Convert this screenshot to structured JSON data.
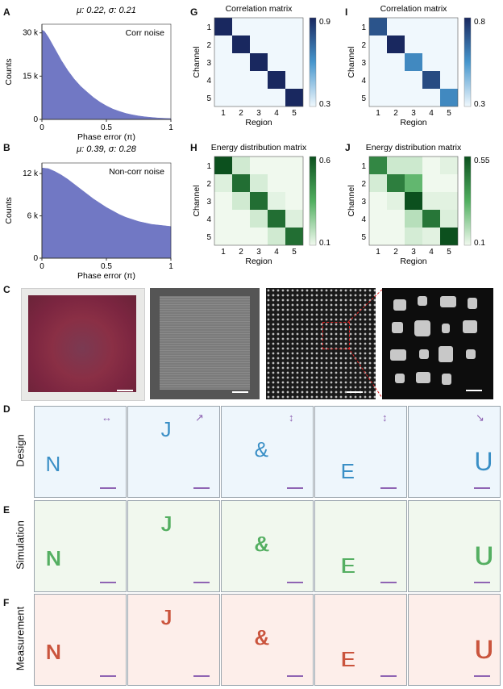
{
  "panels": {
    "A": "A",
    "B": "B",
    "C": "C",
    "D": "D",
    "E": "E",
    "F": "F",
    "G": "G",
    "H": "H",
    "I": "I",
    "J": "J"
  },
  "chart_data": [
    {
      "id": "A",
      "type": "area",
      "title": "μ: 0.22, σ: 0.21",
      "annotation": "Corr noise",
      "xlabel": "Phase error (π)",
      "ylabel": "Counts",
      "xlim": [
        0,
        1
      ],
      "ylim": [
        0,
        33000
      ],
      "xticks": [
        "0",
        "0.5",
        "1"
      ],
      "yticks": [
        {
          "v": 0,
          "label": "0"
        },
        {
          "v": 15000,
          "label": "15 k"
        },
        {
          "v": 30000,
          "label": "30 k"
        }
      ],
      "x": [
        0,
        0.02,
        0.05,
        0.1,
        0.15,
        0.2,
        0.25,
        0.3,
        0.35,
        0.4,
        0.45,
        0.5,
        0.55,
        0.6,
        0.65,
        0.7,
        0.75,
        0.8,
        0.85,
        0.9,
        0.95,
        1.0
      ],
      "values": [
        31000,
        30500,
        28500,
        24500,
        20500,
        17000,
        14000,
        11500,
        9500,
        7600,
        6000,
        4700,
        3600,
        2800,
        2100,
        1600,
        1200,
        900,
        700,
        500,
        400,
        300
      ],
      "color": "#7178c4"
    },
    {
      "id": "B",
      "type": "area",
      "title": "μ: 0.39, σ: 0.28",
      "annotation": "Non-corr noise",
      "xlabel": "Phase error (π)",
      "ylabel": "Counts",
      "xlim": [
        0,
        1
      ],
      "ylim": [
        0,
        13500
      ],
      "xticks": [
        "0",
        "0.5",
        "1"
      ],
      "yticks": [
        {
          "v": 0,
          "label": "0"
        },
        {
          "v": 6000,
          "label": "6 k"
        },
        {
          "v": 12000,
          "label": "12 k"
        }
      ],
      "x": [
        0,
        0.05,
        0.1,
        0.15,
        0.2,
        0.25,
        0.3,
        0.35,
        0.4,
        0.45,
        0.5,
        0.55,
        0.6,
        0.65,
        0.7,
        0.75,
        0.8,
        0.85,
        0.9,
        0.95,
        1.0
      ],
      "values": [
        12800,
        12700,
        12300,
        11800,
        11200,
        10500,
        9800,
        9100,
        8400,
        7800,
        7200,
        6700,
        6200,
        5800,
        5500,
        5200,
        5000,
        4800,
        4700,
        4600,
        4500
      ],
      "color": "#7178c4"
    },
    {
      "id": "G",
      "type": "heatmap",
      "title": "Correlation matrix",
      "xlabel": "Region",
      "ylabel": "Channel",
      "xticks": [
        "1",
        "2",
        "3",
        "4",
        "5"
      ],
      "yticks": [
        "1",
        "2",
        "3",
        "4",
        "5"
      ],
      "colorbar": {
        "min": 0.3,
        "max": 0.9,
        "labels": [
          "0.9",
          "0.3"
        ]
      },
      "palette": "blue",
      "matrix": [
        [
          0.93,
          0.28,
          0.28,
          0.28,
          0.28
        ],
        [
          0.28,
          0.93,
          0.28,
          0.28,
          0.28
        ],
        [
          0.28,
          0.28,
          0.93,
          0.28,
          0.28
        ],
        [
          0.28,
          0.28,
          0.28,
          0.93,
          0.28
        ],
        [
          0.28,
          0.28,
          0.28,
          0.28,
          0.93
        ]
      ]
    },
    {
      "id": "I",
      "type": "heatmap",
      "title": "Correlation matrix",
      "xlabel": "Region",
      "ylabel": "Channel",
      "xticks": [
        "1",
        "2",
        "3",
        "4",
        "5"
      ],
      "yticks": [
        "1",
        "2",
        "3",
        "4",
        "5"
      ],
      "colorbar": {
        "min": 0.3,
        "max": 0.8,
        "labels": [
          "0.8",
          "0.3"
        ]
      },
      "palette": "blue",
      "matrix": [
        [
          0.7,
          0.28,
          0.28,
          0.28,
          0.28
        ],
        [
          0.28,
          0.82,
          0.28,
          0.28,
          0.28
        ],
        [
          0.28,
          0.28,
          0.58,
          0.28,
          0.28
        ],
        [
          0.28,
          0.28,
          0.28,
          0.72,
          0.28
        ],
        [
          0.28,
          0.28,
          0.28,
          0.28,
          0.58
        ]
      ]
    },
    {
      "id": "H",
      "type": "heatmap",
      "title": "Energy distribution matrix",
      "xlabel": "Region",
      "ylabel": "Channel",
      "xticks": [
        "1",
        "2",
        "3",
        "4",
        "5"
      ],
      "yticks": [
        "1",
        "2",
        "3",
        "4",
        "5"
      ],
      "colorbar": {
        "min": 0.1,
        "max": 0.6,
        "labels": [
          "0.6",
          "0.1"
        ]
      },
      "palette": "green",
      "matrix": [
        [
          0.62,
          0.15,
          0.09,
          0.09,
          0.09
        ],
        [
          0.13,
          0.52,
          0.14,
          0.09,
          0.09
        ],
        [
          0.09,
          0.15,
          0.52,
          0.12,
          0.09
        ],
        [
          0.09,
          0.09,
          0.15,
          0.52,
          0.13
        ],
        [
          0.09,
          0.09,
          0.09,
          0.15,
          0.52
        ]
      ]
    },
    {
      "id": "J",
      "type": "heatmap",
      "title": "Energy distribution matrix",
      "xlabel": "Region",
      "ylabel": "Channel",
      "xticks": [
        "1",
        "2",
        "3",
        "4",
        "5"
      ],
      "yticks": [
        "1",
        "2",
        "3",
        "4",
        "5"
      ],
      "colorbar": {
        "min": 0.1,
        "max": 0.55,
        "labels": [
          "0.55",
          "0.1"
        ]
      },
      "palette": "green",
      "matrix": [
        [
          0.42,
          0.15,
          0.15,
          0.09,
          0.12
        ],
        [
          0.14,
          0.44,
          0.3,
          0.09,
          0.09
        ],
        [
          0.09,
          0.12,
          0.58,
          0.12,
          0.12
        ],
        [
          0.09,
          0.09,
          0.18,
          0.46,
          0.13
        ],
        [
          0.09,
          0.09,
          0.14,
          0.12,
          0.58
        ]
      ]
    }
  ],
  "grid": {
    "rows": [
      {
        "label": "Design",
        "bg": "#eef6fc",
        "color": "#3a8fc6"
      },
      {
        "label": "Simulation",
        "bg": "#f1f8ee",
        "color": "#3aa34a"
      },
      {
        "label": "Measurement",
        "bg": "#fdeeea",
        "color": "#c23a20"
      }
    ],
    "letters": [
      "N",
      "J",
      "&",
      "E",
      "U"
    ],
    "scalebar_color": "#8f64b3",
    "arrows": [
      "↔",
      "↗",
      "↕",
      "↕",
      "↘"
    ]
  }
}
